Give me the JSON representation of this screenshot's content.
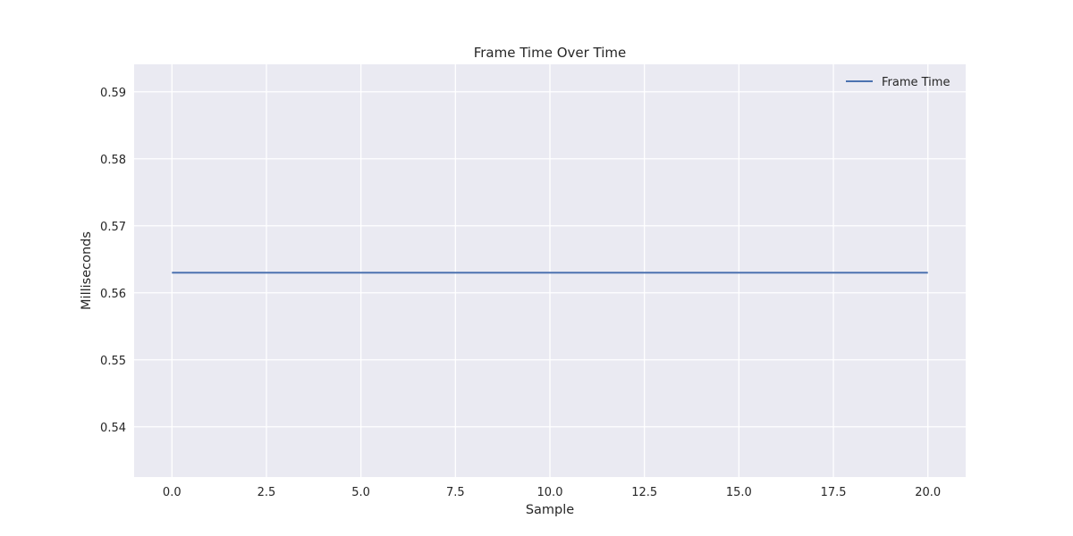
{
  "chart_data": {
    "type": "line",
    "title": "Frame Time Over Time",
    "xlabel": "Sample",
    "ylabel": "Milliseconds",
    "xlim": [
      -1,
      21
    ],
    "ylim": [
      0.5325,
      0.5941
    ],
    "xticks": [
      0,
      2.5,
      5,
      7.5,
      10,
      12.5,
      15,
      17.5,
      20
    ],
    "xtick_labels": [
      "0.0",
      "2.5",
      "5.0",
      "7.5",
      "10.0",
      "12.5",
      "15.0",
      "17.5",
      "20.0"
    ],
    "yticks": [
      0.54,
      0.55,
      0.56,
      0.57,
      0.58,
      0.59
    ],
    "ytick_labels": [
      "0.54",
      "0.55",
      "0.56",
      "0.57",
      "0.58",
      "0.59"
    ],
    "grid": true,
    "legend_position": "top-right",
    "background_color": "#eaeaf2",
    "grid_color": "#ffffff",
    "series": [
      {
        "name": "Frame Time",
        "color": "#4c72b0",
        "x": [
          0,
          1,
          2,
          3,
          4,
          5,
          6,
          7,
          8,
          9,
          10,
          11,
          12,
          13,
          14,
          15,
          16,
          17,
          18,
          19,
          20
        ],
        "y": [
          0.563,
          0.563,
          0.563,
          0.563,
          0.563,
          0.563,
          0.563,
          0.563,
          0.563,
          0.563,
          0.563,
          0.563,
          0.563,
          0.563,
          0.563,
          0.563,
          0.563,
          0.563,
          0.563,
          0.563,
          0.563
        ]
      }
    ]
  }
}
